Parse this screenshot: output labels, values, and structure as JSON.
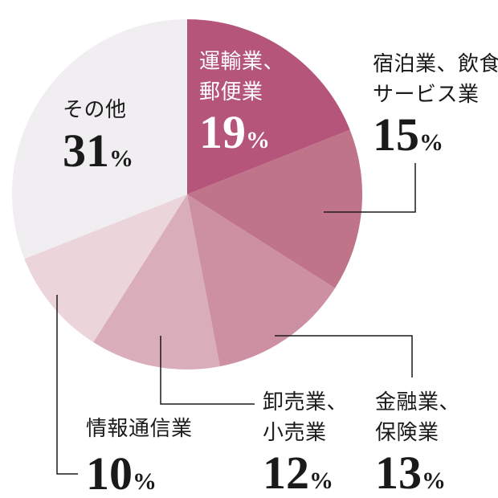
{
  "figure": {
    "background": "#ffffff",
    "leader_line_color": "#1a1a1a",
    "text_color": "#1a1a1a",
    "on_slice_text_color": "#ffffff"
  },
  "chart_data": {
    "type": "pie",
    "title": "",
    "categories": [
      "運輸業、郵便業",
      "宿泊業、飲食サービス業",
      "金融業、保険業",
      "卸売業、小売業",
      "情報通信業",
      "その他"
    ],
    "values": [
      19,
      15,
      13,
      12,
      10,
      31
    ],
    "unit": "%",
    "colors": [
      "#b45579",
      "#c07489",
      "#cc90a2",
      "#d9adb9",
      "#ebd4da",
      "#f0eef0"
    ],
    "start_angle": "12-oclock",
    "direction": "clockwise",
    "legend_position": "none",
    "grid": false,
    "annotations": [
      {
        "label": "運輸業、郵便業",
        "value_text": "19%",
        "placement": "on-slice",
        "text_color": "#ffffff",
        "leader_line": false
      },
      {
        "label": "宿泊業、飲食サービス業",
        "value_text": "15%",
        "placement": "outside-top-right",
        "text_color": "#1a1a1a",
        "leader_line": true
      },
      {
        "label": "金融業、保険業",
        "value_text": "13%",
        "placement": "outside-bottom-right",
        "text_color": "#1a1a1a",
        "leader_line": true
      },
      {
        "label": "卸売業、小売業",
        "value_text": "12%",
        "placement": "outside-bottom-center",
        "text_color": "#1a1a1a",
        "leader_line": true
      },
      {
        "label": "情報通信業",
        "value_text": "10%",
        "placement": "outside-bottom-left",
        "text_color": "#1a1a1a",
        "leader_line": true
      },
      {
        "label": "その他",
        "value_text": "31%",
        "placement": "on-slice",
        "text_color": "#1a1a1a",
        "leader_line": false
      }
    ]
  },
  "labels": {
    "transport": {
      "line1": "運輸業、",
      "line2": "郵便業",
      "value": "19",
      "unit": "%"
    },
    "lodging": {
      "line1": "宿泊業、飲食",
      "line2": "サービス業",
      "value": "15",
      "unit": "%"
    },
    "others": {
      "line1": "その他",
      "value": "31",
      "unit": "%"
    },
    "info": {
      "line1": "情報通信業",
      "value": "10",
      "unit": "%"
    },
    "wholesale": {
      "line1": "卸売業、",
      "line2": "小売業",
      "value": "12",
      "unit": "%"
    },
    "finance": {
      "line1": "金融業、",
      "line2": "保険業",
      "value": "13",
      "unit": "%"
    }
  }
}
